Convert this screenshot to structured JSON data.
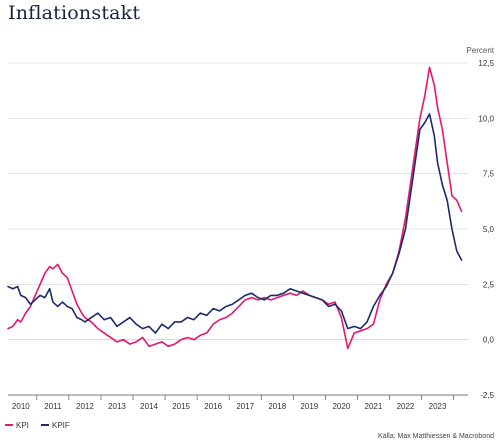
{
  "title": "Inflationstakt",
  "chart_data": {
    "type": "line",
    "title": "Inflationstakt",
    "y_unit": "Percent",
    "source": "Källa: Max Matthiessen & Macrobond",
    "xlim": [
      2009.6,
      2023.95
    ],
    "ylim": [
      -2.5,
      12.5
    ],
    "y_ticks": [
      -2.5,
      0.0,
      2.5,
      5.0,
      7.5,
      10.0,
      12.5
    ],
    "y_tick_labels": [
      "-2,5",
      "0,0",
      "2,5",
      "5,0",
      "7,5",
      "10,0",
      "12,5"
    ],
    "x_ticks": [
      2010,
      2011,
      2012,
      2013,
      2014,
      2015,
      2016,
      2017,
      2018,
      2019,
      2020,
      2021,
      2022,
      2023
    ],
    "x_tick_labels": [
      "2010",
      "2011",
      "2012",
      "2013",
      "2014",
      "2015",
      "2016",
      "2017",
      "2018",
      "2019",
      "2020",
      "2021",
      "2022",
      "2023"
    ],
    "grid": true,
    "legend_position": "bottom-left",
    "series": [
      {
        "name": "KPI",
        "color": "#e5186d",
        "x": [
          2009.6,
          2009.75,
          2009.9,
          2010.0,
          2010.15,
          2010.3,
          2010.45,
          2010.6,
          2010.75,
          2010.9,
          2011.0,
          2011.15,
          2011.3,
          2011.45,
          2011.6,
          2011.75,
          2011.9,
          2012.0,
          2012.2,
          2012.4,
          2012.6,
          2012.8,
          2013.0,
          2013.2,
          2013.4,
          2013.6,
          2013.8,
          2014.0,
          2014.2,
          2014.4,
          2014.6,
          2014.8,
          2015.0,
          2015.2,
          2015.4,
          2015.6,
          2015.8,
          2016.0,
          2016.2,
          2016.4,
          2016.6,
          2016.8,
          2017.0,
          2017.2,
          2017.4,
          2017.6,
          2017.8,
          2018.0,
          2018.2,
          2018.4,
          2018.6,
          2018.8,
          2019.0,
          2019.2,
          2019.4,
          2019.6,
          2019.8,
          2020.0,
          2020.2,
          2020.4,
          2020.6,
          2020.8,
          2021.0,
          2021.2,
          2021.4,
          2021.6,
          2021.8,
          2022.0,
          2022.15,
          2022.3,
          2022.45,
          2022.6,
          2022.75,
          2022.9,
          2023.0,
          2023.15,
          2023.3,
          2023.45,
          2023.6,
          2023.75
        ],
        "values": [
          0.5,
          0.6,
          0.9,
          0.8,
          1.2,
          1.5,
          2.0,
          2.5,
          3.0,
          3.3,
          3.2,
          3.4,
          3.0,
          2.8,
          2.2,
          1.6,
          1.2,
          1.0,
          0.8,
          0.5,
          0.3,
          0.1,
          -0.1,
          0.0,
          -0.2,
          -0.1,
          0.1,
          -0.3,
          -0.2,
          -0.1,
          -0.3,
          -0.2,
          0.0,
          0.1,
          0.0,
          0.2,
          0.3,
          0.7,
          0.9,
          1.0,
          1.2,
          1.5,
          1.8,
          1.9,
          1.8,
          1.9,
          1.8,
          1.9,
          2.0,
          2.1,
          2.0,
          2.2,
          2.0,
          1.9,
          1.8,
          1.6,
          1.7,
          1.0,
          -0.4,
          0.3,
          0.4,
          0.5,
          0.7,
          1.8,
          2.5,
          3.0,
          4.0,
          5.5,
          7.0,
          8.5,
          10.0,
          11.0,
          12.3,
          11.5,
          10.5,
          9.5,
          8.0,
          6.5,
          6.3,
          5.8
        ]
      },
      {
        "name": "KPIF",
        "color": "#1c2a6e",
        "x": [
          2009.6,
          2009.75,
          2009.9,
          2010.0,
          2010.15,
          2010.3,
          2010.45,
          2010.6,
          2010.75,
          2010.9,
          2011.0,
          2011.15,
          2011.3,
          2011.45,
          2011.6,
          2011.75,
          2011.9,
          2012.0,
          2012.2,
          2012.4,
          2012.6,
          2012.8,
          2013.0,
          2013.2,
          2013.4,
          2013.6,
          2013.8,
          2014.0,
          2014.2,
          2014.4,
          2014.6,
          2014.8,
          2015.0,
          2015.2,
          2015.4,
          2015.6,
          2015.8,
          2016.0,
          2016.2,
          2016.4,
          2016.6,
          2016.8,
          2017.0,
          2017.2,
          2017.4,
          2017.6,
          2017.8,
          2018.0,
          2018.2,
          2018.4,
          2018.6,
          2018.8,
          2019.0,
          2019.2,
          2019.4,
          2019.6,
          2019.8,
          2020.0,
          2020.2,
          2020.4,
          2020.6,
          2020.8,
          2021.0,
          2021.2,
          2021.4,
          2021.6,
          2021.8,
          2022.0,
          2022.15,
          2022.3,
          2022.45,
          2022.6,
          2022.75,
          2022.9,
          2023.0,
          2023.15,
          2023.3,
          2023.45,
          2023.6,
          2023.75
        ],
        "values": [
          2.4,
          2.3,
          2.4,
          2.0,
          1.9,
          1.6,
          1.8,
          2.0,
          1.9,
          2.3,
          1.7,
          1.5,
          1.7,
          1.5,
          1.4,
          1.0,
          0.9,
          0.8,
          1.0,
          1.2,
          0.9,
          1.0,
          0.6,
          0.8,
          1.0,
          0.7,
          0.5,
          0.6,
          0.3,
          0.7,
          0.5,
          0.8,
          0.8,
          1.0,
          0.9,
          1.2,
          1.1,
          1.4,
          1.3,
          1.5,
          1.6,
          1.8,
          2.0,
          2.1,
          1.9,
          1.8,
          2.0,
          2.0,
          2.1,
          2.3,
          2.2,
          2.1,
          2.0,
          1.9,
          1.8,
          1.5,
          1.6,
          1.3,
          0.5,
          0.6,
          0.5,
          0.8,
          1.5,
          2.0,
          2.4,
          3.0,
          3.9,
          5.0,
          6.5,
          8.0,
          9.5,
          9.8,
          10.2,
          9.2,
          8.0,
          7.0,
          6.3,
          5.0,
          4.0,
          3.6
        ]
      }
    ]
  }
}
